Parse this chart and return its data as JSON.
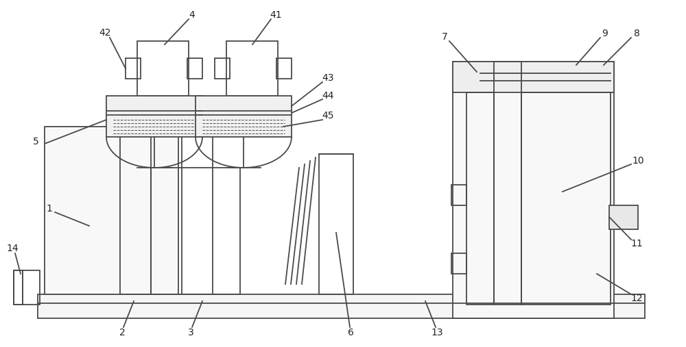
{
  "bg_color": "#ffffff",
  "line_color": "#4a4a4a",
  "line_width": 1.3,
  "fig_width": 10.0,
  "fig_height": 5.07
}
